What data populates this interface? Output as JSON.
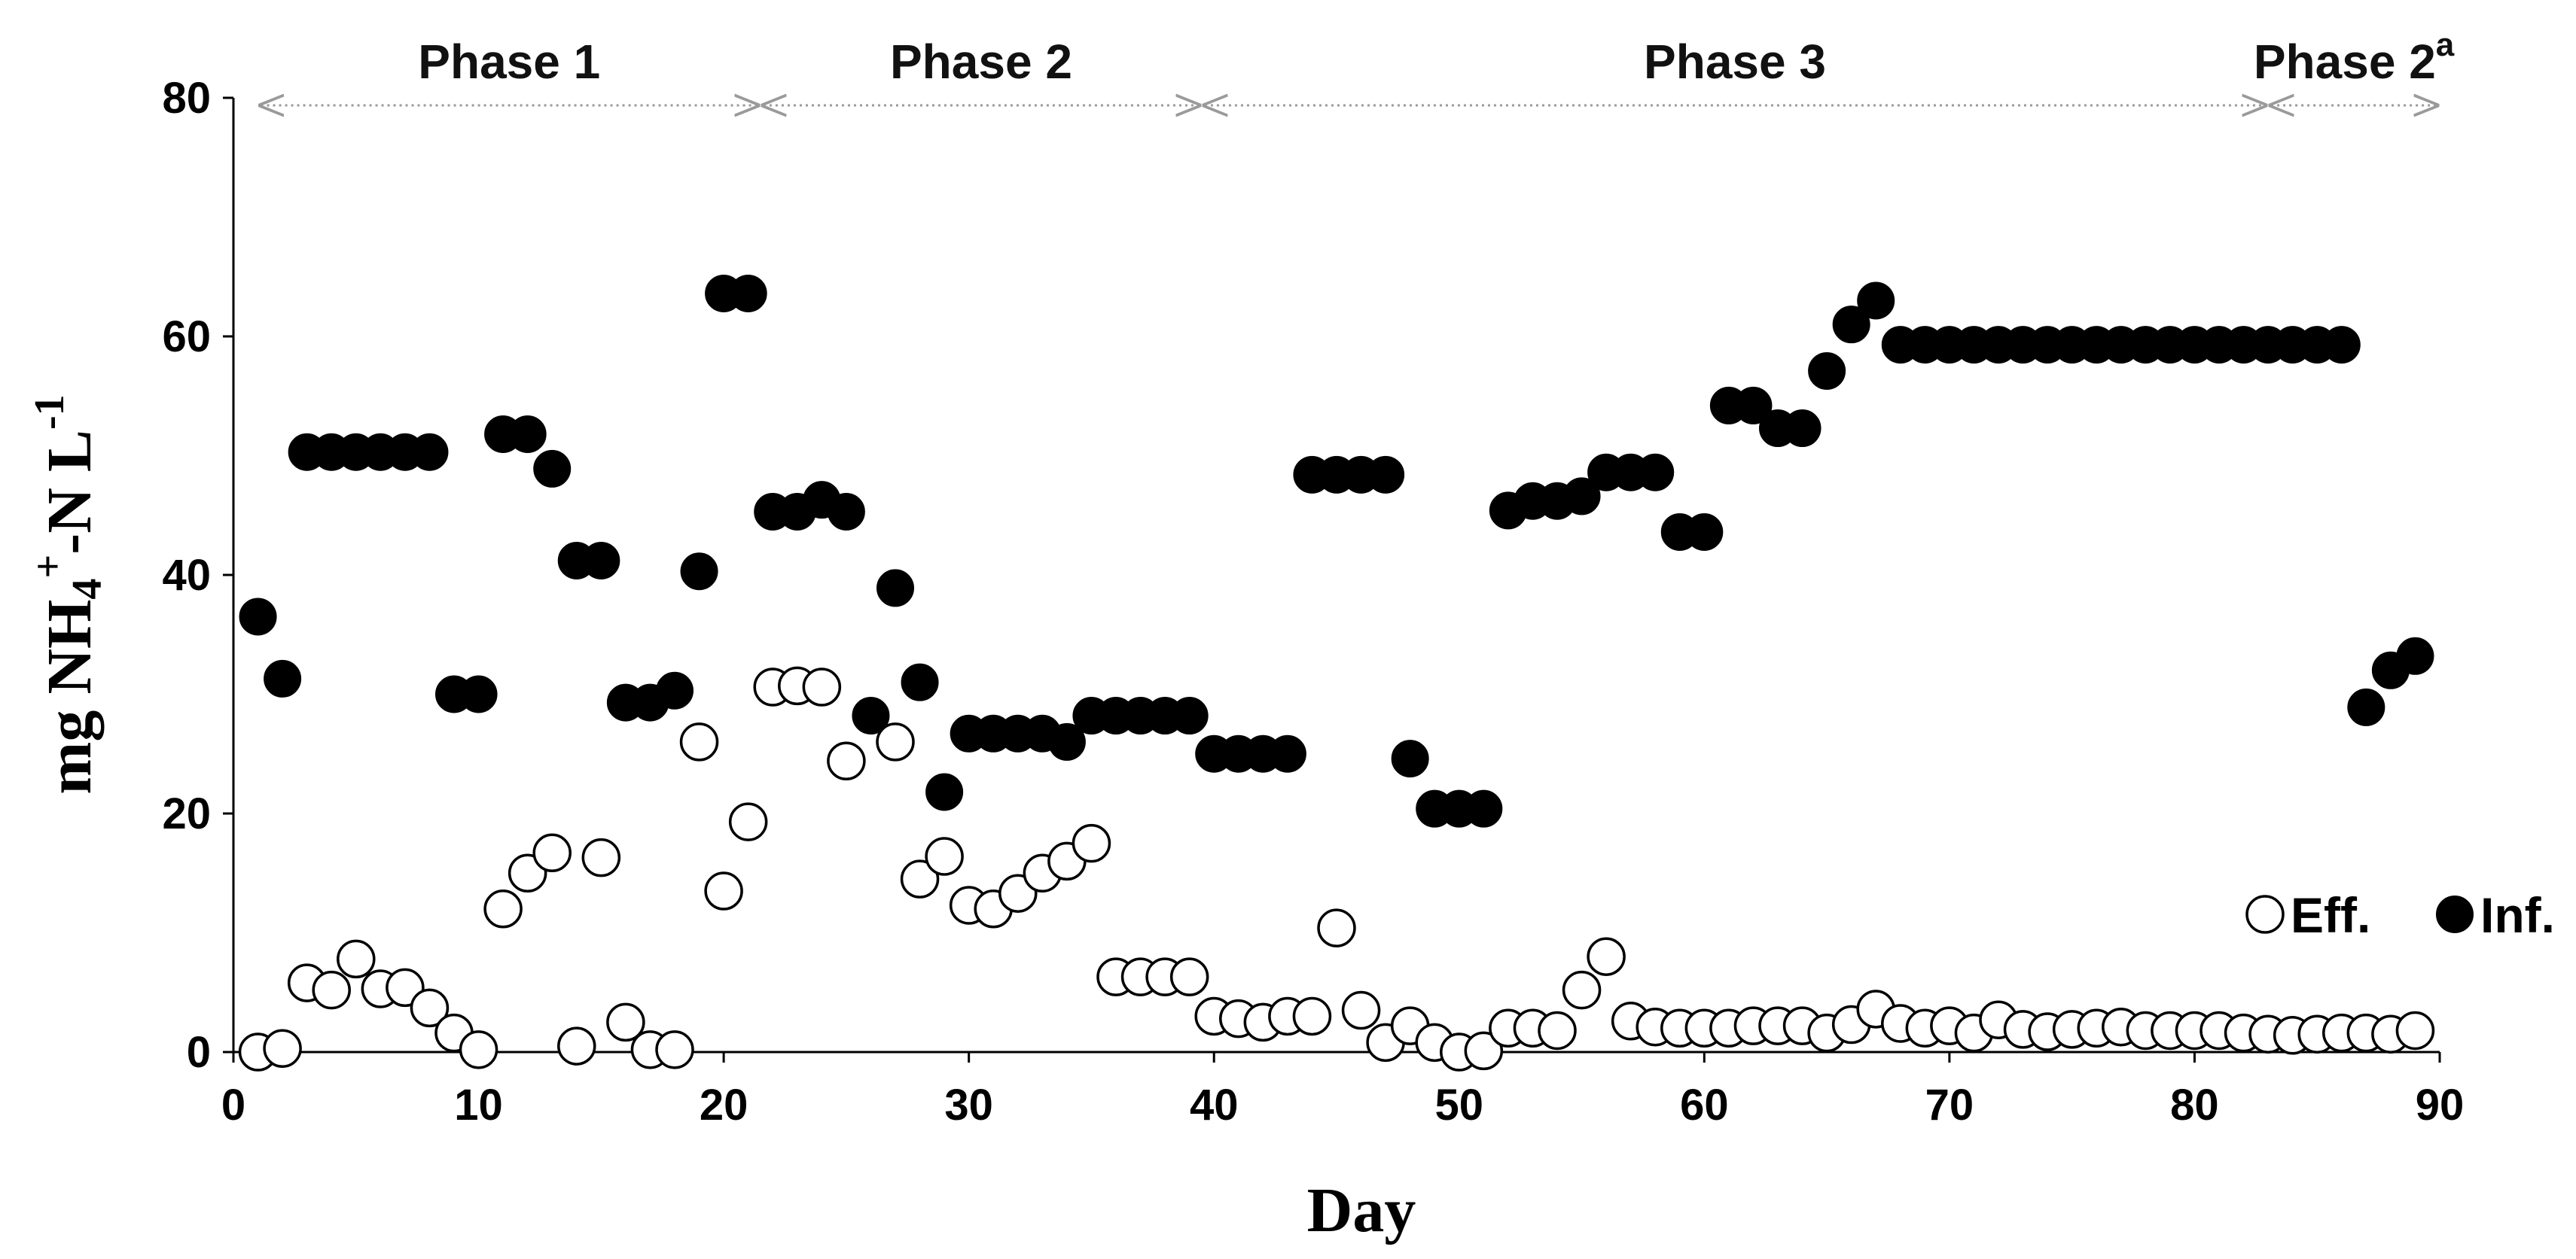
{
  "chart_data": {
    "type": "scatter",
    "title": "",
    "xlabel": "Day",
    "ylabel": {
      "prefix": "mg NH",
      "subscript": "4",
      "superscript": "+",
      "middle": "-N L",
      "exponent": "-1"
    },
    "xlim": [
      0,
      90
    ],
    "ylim": [
      0,
      80
    ],
    "x_ticks": [
      0,
      10,
      20,
      30,
      40,
      50,
      60,
      70,
      80,
      90
    ],
    "y_ticks": [
      0,
      20,
      40,
      60,
      80
    ],
    "grid": false,
    "legend_position": "bottom-right",
    "phases": [
      {
        "label": "Phase 1",
        "superscript": "",
        "start": 1,
        "end": 21.5
      },
      {
        "label": "Phase 2",
        "superscript": "",
        "start": 21.5,
        "end": 39.5
      },
      {
        "label": "Phase 3",
        "superscript": "",
        "start": 39.5,
        "end": 83
      },
      {
        "label": "Phase 2",
        "superscript": "a",
        "start": 83,
        "end": 90
      }
    ],
    "series": [
      {
        "name": "Eff.",
        "marker": "open-circle",
        "x": [
          1,
          2,
          3,
          4,
          5,
          6,
          7,
          8,
          9,
          10,
          11,
          12,
          13,
          14,
          15,
          16,
          17,
          18,
          19,
          20,
          21,
          22,
          23,
          24,
          25,
          27,
          28,
          29,
          30,
          31,
          32,
          33,
          34,
          35,
          36,
          37,
          38,
          39,
          40,
          41,
          42,
          43,
          44,
          45,
          46,
          47,
          48,
          49,
          50,
          51,
          52,
          53,
          54,
          55,
          56,
          57,
          58,
          59,
          60,
          61,
          62,
          63,
          64,
          65,
          66,
          67,
          68,
          69,
          70,
          71,
          72,
          73,
          74,
          75,
          76,
          77,
          78,
          79,
          80,
          81,
          82,
          83,
          84,
          85,
          86,
          87,
          88,
          89
        ],
        "y": [
          0,
          0.3,
          5.8,
          5.2,
          7.8,
          5.3,
          5.4,
          3.7,
          1.6,
          0.2,
          12,
          15,
          16.7,
          0.5,
          16.3,
          2.5,
          0.2,
          0.2,
          26,
          13.5,
          19.3,
          30.6,
          30.7,
          30.6,
          24.4,
          26,
          14.5,
          16.4,
          12.3,
          12,
          13.3,
          15,
          16,
          17.5,
          6.3,
          6.3,
          6.3,
          6.3,
          3,
          2.8,
          2.5,
          3,
          3,
          10.4,
          3.5,
          0.8,
          2.2,
          0.8,
          0,
          0.1,
          2,
          2,
          1.8,
          5.2,
          8,
          2.6,
          2.1,
          2,
          2,
          2,
          2.2,
          2.2,
          2.2,
          1.6,
          2.3,
          3.6,
          2.4,
          2,
          2.2,
          1.6,
          2.7,
          1.9,
          1.7,
          1.9,
          2,
          2.1,
          1.8,
          1.8,
          1.8,
          1.8,
          1.6,
          1.5,
          1.4,
          1.5,
          1.6,
          1.6,
          1.5,
          1.8
        ]
      },
      {
        "name": "Inf.",
        "marker": "filled-circle",
        "x": [
          1,
          2,
          3,
          4,
          5,
          6,
          7,
          8,
          9,
          10,
          11,
          12,
          13,
          14,
          15,
          16,
          17,
          18,
          19,
          20,
          21,
          22,
          23,
          24,
          25,
          26,
          27,
          28,
          29,
          30,
          31,
          32,
          33,
          34,
          35,
          36,
          37,
          38,
          39,
          40,
          41,
          42,
          43,
          44,
          45,
          46,
          47,
          48,
          49,
          50,
          51,
          52,
          53,
          54,
          55,
          56,
          57,
          58,
          59,
          60,
          61,
          62,
          63,
          64,
          65,
          66,
          67,
          68,
          69,
          70,
          71,
          72,
          73,
          74,
          75,
          76,
          77,
          78,
          79,
          80,
          81,
          82,
          83,
          84,
          85,
          86,
          87,
          88,
          89
        ],
        "y": [
          36.5,
          31.3,
          50.3,
          50.3,
          50.3,
          50.3,
          50.3,
          50.3,
          30,
          30,
          51.8,
          51.8,
          48.9,
          41.2,
          41.2,
          29.3,
          29.3,
          30.3,
          40.3,
          63.6,
          63.6,
          45.3,
          45.3,
          46.3,
          45.3,
          28.2,
          38.9,
          31,
          21.8,
          26.7,
          26.7,
          26.7,
          26.7,
          26,
          28.2,
          28.2,
          28.2,
          28.2,
          28.2,
          25,
          25,
          25,
          25,
          48.4,
          48.4,
          48.4,
          48.4,
          24.6,
          20.4,
          20.4,
          20.4,
          45.4,
          46.2,
          46.2,
          46.6,
          48.6,
          48.6,
          48.6,
          43.6,
          43.6,
          54.2,
          54.2,
          52.3,
          52.3,
          57.1,
          61,
          63,
          59.3,
          59.3,
          59.3,
          59.3,
          59.3,
          59.3,
          59.3,
          59.3,
          59.3,
          59.3,
          59.3,
          59.3,
          59.3,
          59.3,
          59.3,
          59.3,
          59.3,
          59.3,
          59.3,
          28.9,
          32,
          33.2
        ]
      }
    ]
  }
}
